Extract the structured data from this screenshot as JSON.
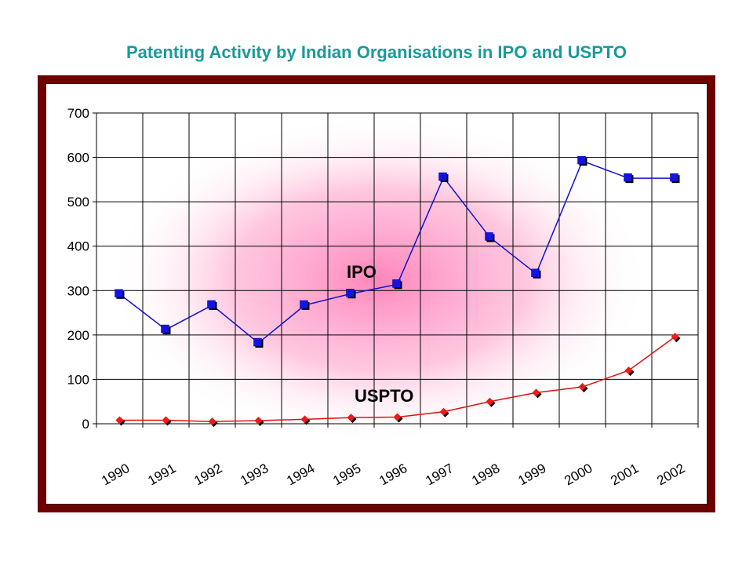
{
  "title": "Patenting Activity by Indian Organisations in IPO and USPTO",
  "colors": {
    "frame": "#6e0000",
    "glow": "#ff80b8",
    "ipo": "#1010cc",
    "ipo_marker": "#1414e0",
    "uspto": "#e01010",
    "uspto_marker": "#f01818"
  },
  "chart_data": {
    "type": "line",
    "title": "Patenting Activity by Indian Organisations in IPO and USPTO",
    "xlabel": "",
    "ylabel": "",
    "categories": [
      "1990",
      "1991",
      "1992",
      "1993",
      "1994",
      "1995",
      "1996",
      "1997",
      "1998",
      "1999",
      "2000",
      "2001",
      "2002"
    ],
    "ylim": [
      0,
      700
    ],
    "yticks": [
      0,
      100,
      200,
      300,
      400,
      500,
      600,
      700
    ],
    "grid": true,
    "series": [
      {
        "name": "IPO",
        "marker": "square",
        "values": [
          292,
          212,
          267,
          182,
          267,
          293,
          314,
          555,
          420,
          338,
          592,
          553,
          553
        ]
      },
      {
        "name": "USPTO",
        "marker": "diamond",
        "values": [
          8,
          8,
          5,
          7,
          10,
          14,
          15,
          27,
          50,
          70,
          83,
          120,
          196
        ]
      }
    ]
  }
}
